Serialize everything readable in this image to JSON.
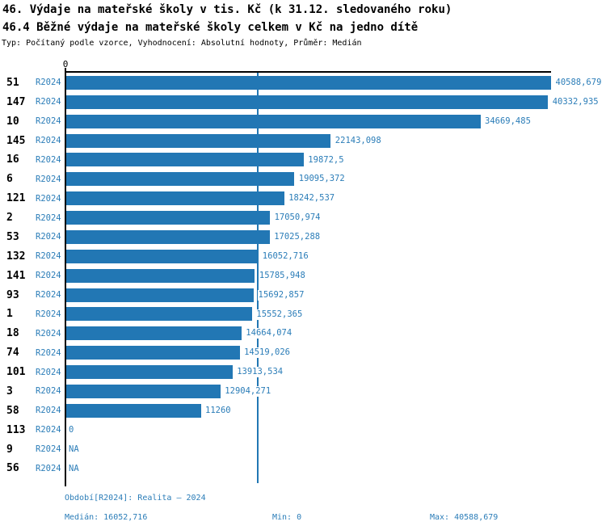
{
  "header": {
    "title": "46. Výdaje na mateřské školy v tis. Kč (k 31.12. sledovaného roku)",
    "subtitle": "46.4 Běžné výdaje na mateřské školy celkem v Kč na jedno dítě",
    "meta": "Typ: Počítaný podle vzorce, Vyhodnocení: Absolutní hodnoty, Průměr: Medián"
  },
  "footer": {
    "period": "Období[R2024]: Realita – 2024",
    "median": "Medián: 16052,716",
    "min": "Min: 0",
    "max": "Max: 40588,679"
  },
  "colors": {
    "bar": "#2277b4",
    "median_line": "#2277b4",
    "blue_text": "#2b7db8",
    "axis": "#000000"
  },
  "chart_data": {
    "type": "bar",
    "orientation": "horizontal",
    "title": "46. Výdaje na mateřské školy v tis. Kč (k 31.12. sledovaného roku)",
    "subtitle": "46.4 Běžné výdaje na mateřské školy celkem v Kč na jedno dítě",
    "categories": [
      "51",
      "147",
      "10",
      "145",
      "16",
      "6",
      "121",
      "2",
      "53",
      "132",
      "141",
      "93",
      "1",
      "18",
      "74",
      "101",
      "3",
      "58",
      "113",
      "9",
      "56"
    ],
    "series": [
      {
        "name": "R2024",
        "values": [
          40588.679,
          40332.935,
          34669.485,
          22143.098,
          19872.5,
          19095.372,
          18242.537,
          17050.974,
          17025.288,
          16052.716,
          15785.948,
          15692.857,
          15552.365,
          14664.074,
          14519.026,
          13913.534,
          12904.271,
          11260,
          0,
          null,
          null
        ],
        "value_labels": [
          "40588,679",
          "40332,935",
          "34669,485",
          "22143,098",
          "19872,5",
          "19095,372",
          "18242,537",
          "17050,974",
          "17025,288",
          "16052,716",
          "15785,948",
          "15692,857",
          "15552,365",
          "14664,074",
          "14519,026",
          "13913,534",
          "12904,271",
          "11260",
          "0",
          "NA",
          "NA"
        ]
      }
    ],
    "xlim": [
      0,
      40588.679
    ],
    "x_tick_labels": [
      "0"
    ],
    "median": 16052.716,
    "min": 0,
    "max": 40588.679,
    "grid": false,
    "legend": "none"
  }
}
